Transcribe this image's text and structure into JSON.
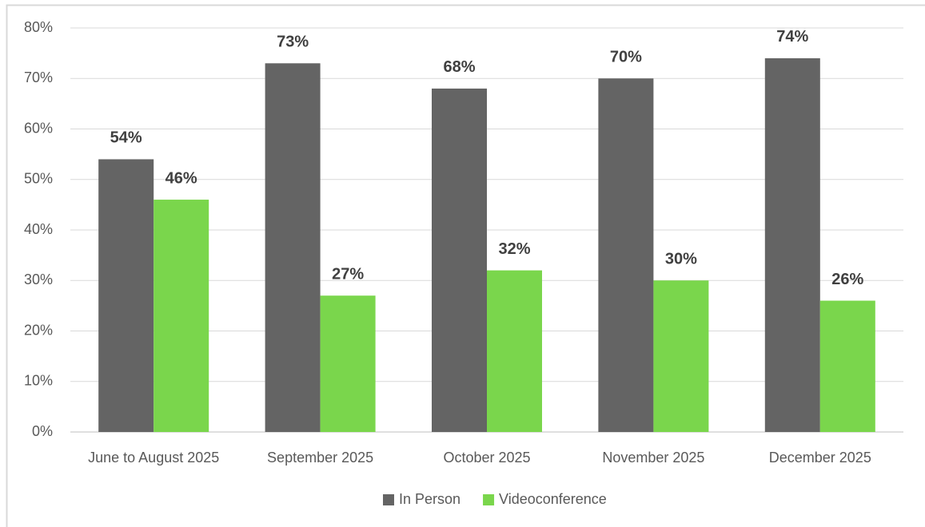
{
  "chart_data": {
    "type": "bar",
    "categories": [
      "June to August 2025",
      "September 2025",
      "October 2025",
      "November 2025",
      "December 2025"
    ],
    "series": [
      {
        "name": "In Person",
        "color": "#646464",
        "values": [
          54,
          73,
          68,
          70,
          74
        ],
        "value_labels": [
          "54%",
          "73%",
          "68%",
          "70%",
          "74%"
        ]
      },
      {
        "name": "Videoconference",
        "color": "#7ad64c",
        "values": [
          46,
          27,
          32,
          30,
          26
        ],
        "value_labels": [
          "46%",
          "27%",
          "32%",
          "30%",
          "26%"
        ]
      }
    ],
    "ylim": [
      0,
      80
    ],
    "yticks": [
      {
        "value": 0,
        "label": "0%"
      },
      {
        "value": 10,
        "label": "10%"
      },
      {
        "value": 20,
        "label": "20%"
      },
      {
        "value": 30,
        "label": "30%"
      },
      {
        "value": 40,
        "label": "40%"
      },
      {
        "value": 50,
        "label": "50%"
      },
      {
        "value": 60,
        "label": "60%"
      },
      {
        "value": 70,
        "label": "70%"
      },
      {
        "value": 80,
        "label": "80%"
      }
    ],
    "grid": true,
    "legend": "bottom"
  }
}
